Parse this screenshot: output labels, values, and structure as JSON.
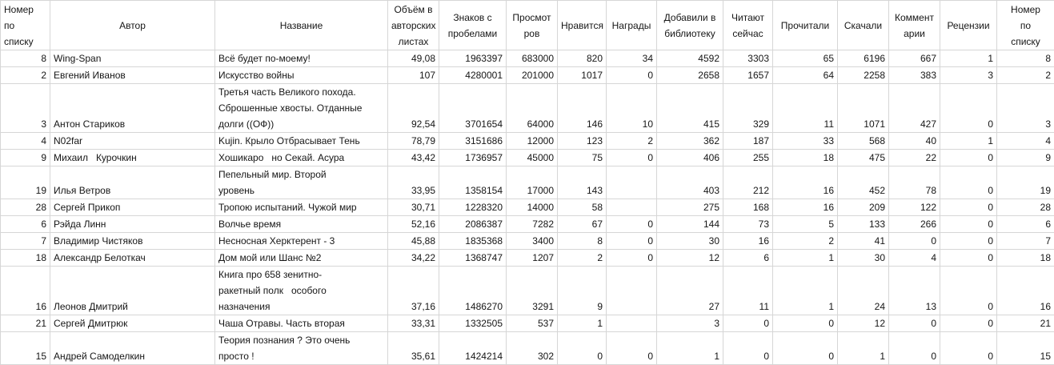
{
  "table": {
    "columns": [
      "Номер\nпо\nсписку",
      "Автор",
      "Название",
      "Объём в\nавторских\nлистах",
      "Знаков с\nпробелами",
      "Просмот\nров",
      "Нравится",
      "Награды",
      "Добавили в\nбиблиотеку",
      "Читают\nсейчас",
      "Прочитали",
      "Скачали",
      "Коммент\nарии",
      "Рецензии",
      "Номер\nпо\nсписку"
    ],
    "rows": [
      [
        "8",
        "Wing-Span",
        "Всё будет по-моему!",
        "49,08",
        "1963397",
        "683000",
        "820",
        "34",
        "4592",
        "3303",
        "65",
        "6196",
        "667",
        "1",
        "8"
      ],
      [
        "2",
        "Евгений Иванов",
        "Искусство войны",
        "107",
        "4280001",
        "201000",
        "1017",
        "0",
        "2658",
        "1657",
        "64",
        "2258",
        "383",
        "3",
        "2"
      ],
      [
        "3",
        "Антон Стариков",
        "Третья часть Великого похода.\nСброшенные хвосты. Отданные\nдолги ((ОФ))",
        "92,54",
        "3701654",
        "64000",
        "146",
        "10",
        "415",
        "329",
        "11",
        "1071",
        "427",
        "0",
        "3"
      ],
      [
        "4",
        "N02far",
        "Kujin. Крыло Отбрасывает Тень",
        "78,79",
        "3151686",
        "12000",
        "123",
        "2",
        "362",
        "187",
        "33",
        "568",
        "40",
        "1",
        "4"
      ],
      [
        "9",
        "Михаил   Курочкин",
        "Хошикаро   но Секай. Асура",
        "43,42",
        "1736957",
        "45000",
        "75",
        "0",
        "406",
        "255",
        "18",
        "475",
        "22",
        "0",
        "9"
      ],
      [
        "19",
        "Илья Ветров",
        "Пепельный мир. Второй\nуровень",
        "33,95",
        "1358154",
        "17000",
        "143",
        "",
        "403",
        "212",
        "16",
        "452",
        "78",
        "0",
        "19"
      ],
      [
        "28",
        "Сергей Прикоп",
        "Тропою испытаний. Чужой мир",
        "30,71",
        "1228320",
        "14000",
        "58",
        "",
        "275",
        "168",
        "16",
        "209",
        "122",
        "0",
        "28"
      ],
      [
        "6",
        "Рэйда Линн",
        "Волчье время",
        "52,16",
        "2086387",
        "7282",
        "67",
        "0",
        "144",
        "73",
        "5",
        "133",
        "266",
        "0",
        "6"
      ],
      [
        "7",
        "Владимир Чистяков",
        "Несносная Херктерент - 3",
        "45,88",
        "1835368",
        "3400",
        "8",
        "0",
        "30",
        "16",
        "2",
        "41",
        "0",
        "0",
        "7"
      ],
      [
        "18",
        "Александр Белоткач",
        "Дом мой или Шанс №2",
        "34,22",
        "1368747",
        "1207",
        "2",
        "0",
        "12",
        "6",
        "1",
        "30",
        "4",
        "0",
        "18"
      ],
      [
        "16",
        "Леонов Дмитрий",
        "Книга про 658 зенитно-\nракетный полк   особого\nназначения",
        "37,16",
        "1486270",
        "3291",
        "9",
        "",
        "27",
        "11",
        "1",
        "24",
        "13",
        "0",
        "16"
      ],
      [
        "21",
        "Сергей Дмитрюк",
        "Чаша Отравы. Часть вторая",
        "33,31",
        "1332505",
        "537",
        "1",
        "",
        "3",
        "0",
        "0",
        "12",
        "0",
        "0",
        "21"
      ],
      [
        "15",
        "Андрей Самоделкин",
        "Теория познания ? Это очень\nпросто !",
        "35,61",
        "1424214",
        "302",
        "0",
        "0",
        "1",
        "0",
        "0",
        "1",
        "0",
        "0",
        "15"
      ]
    ]
  }
}
